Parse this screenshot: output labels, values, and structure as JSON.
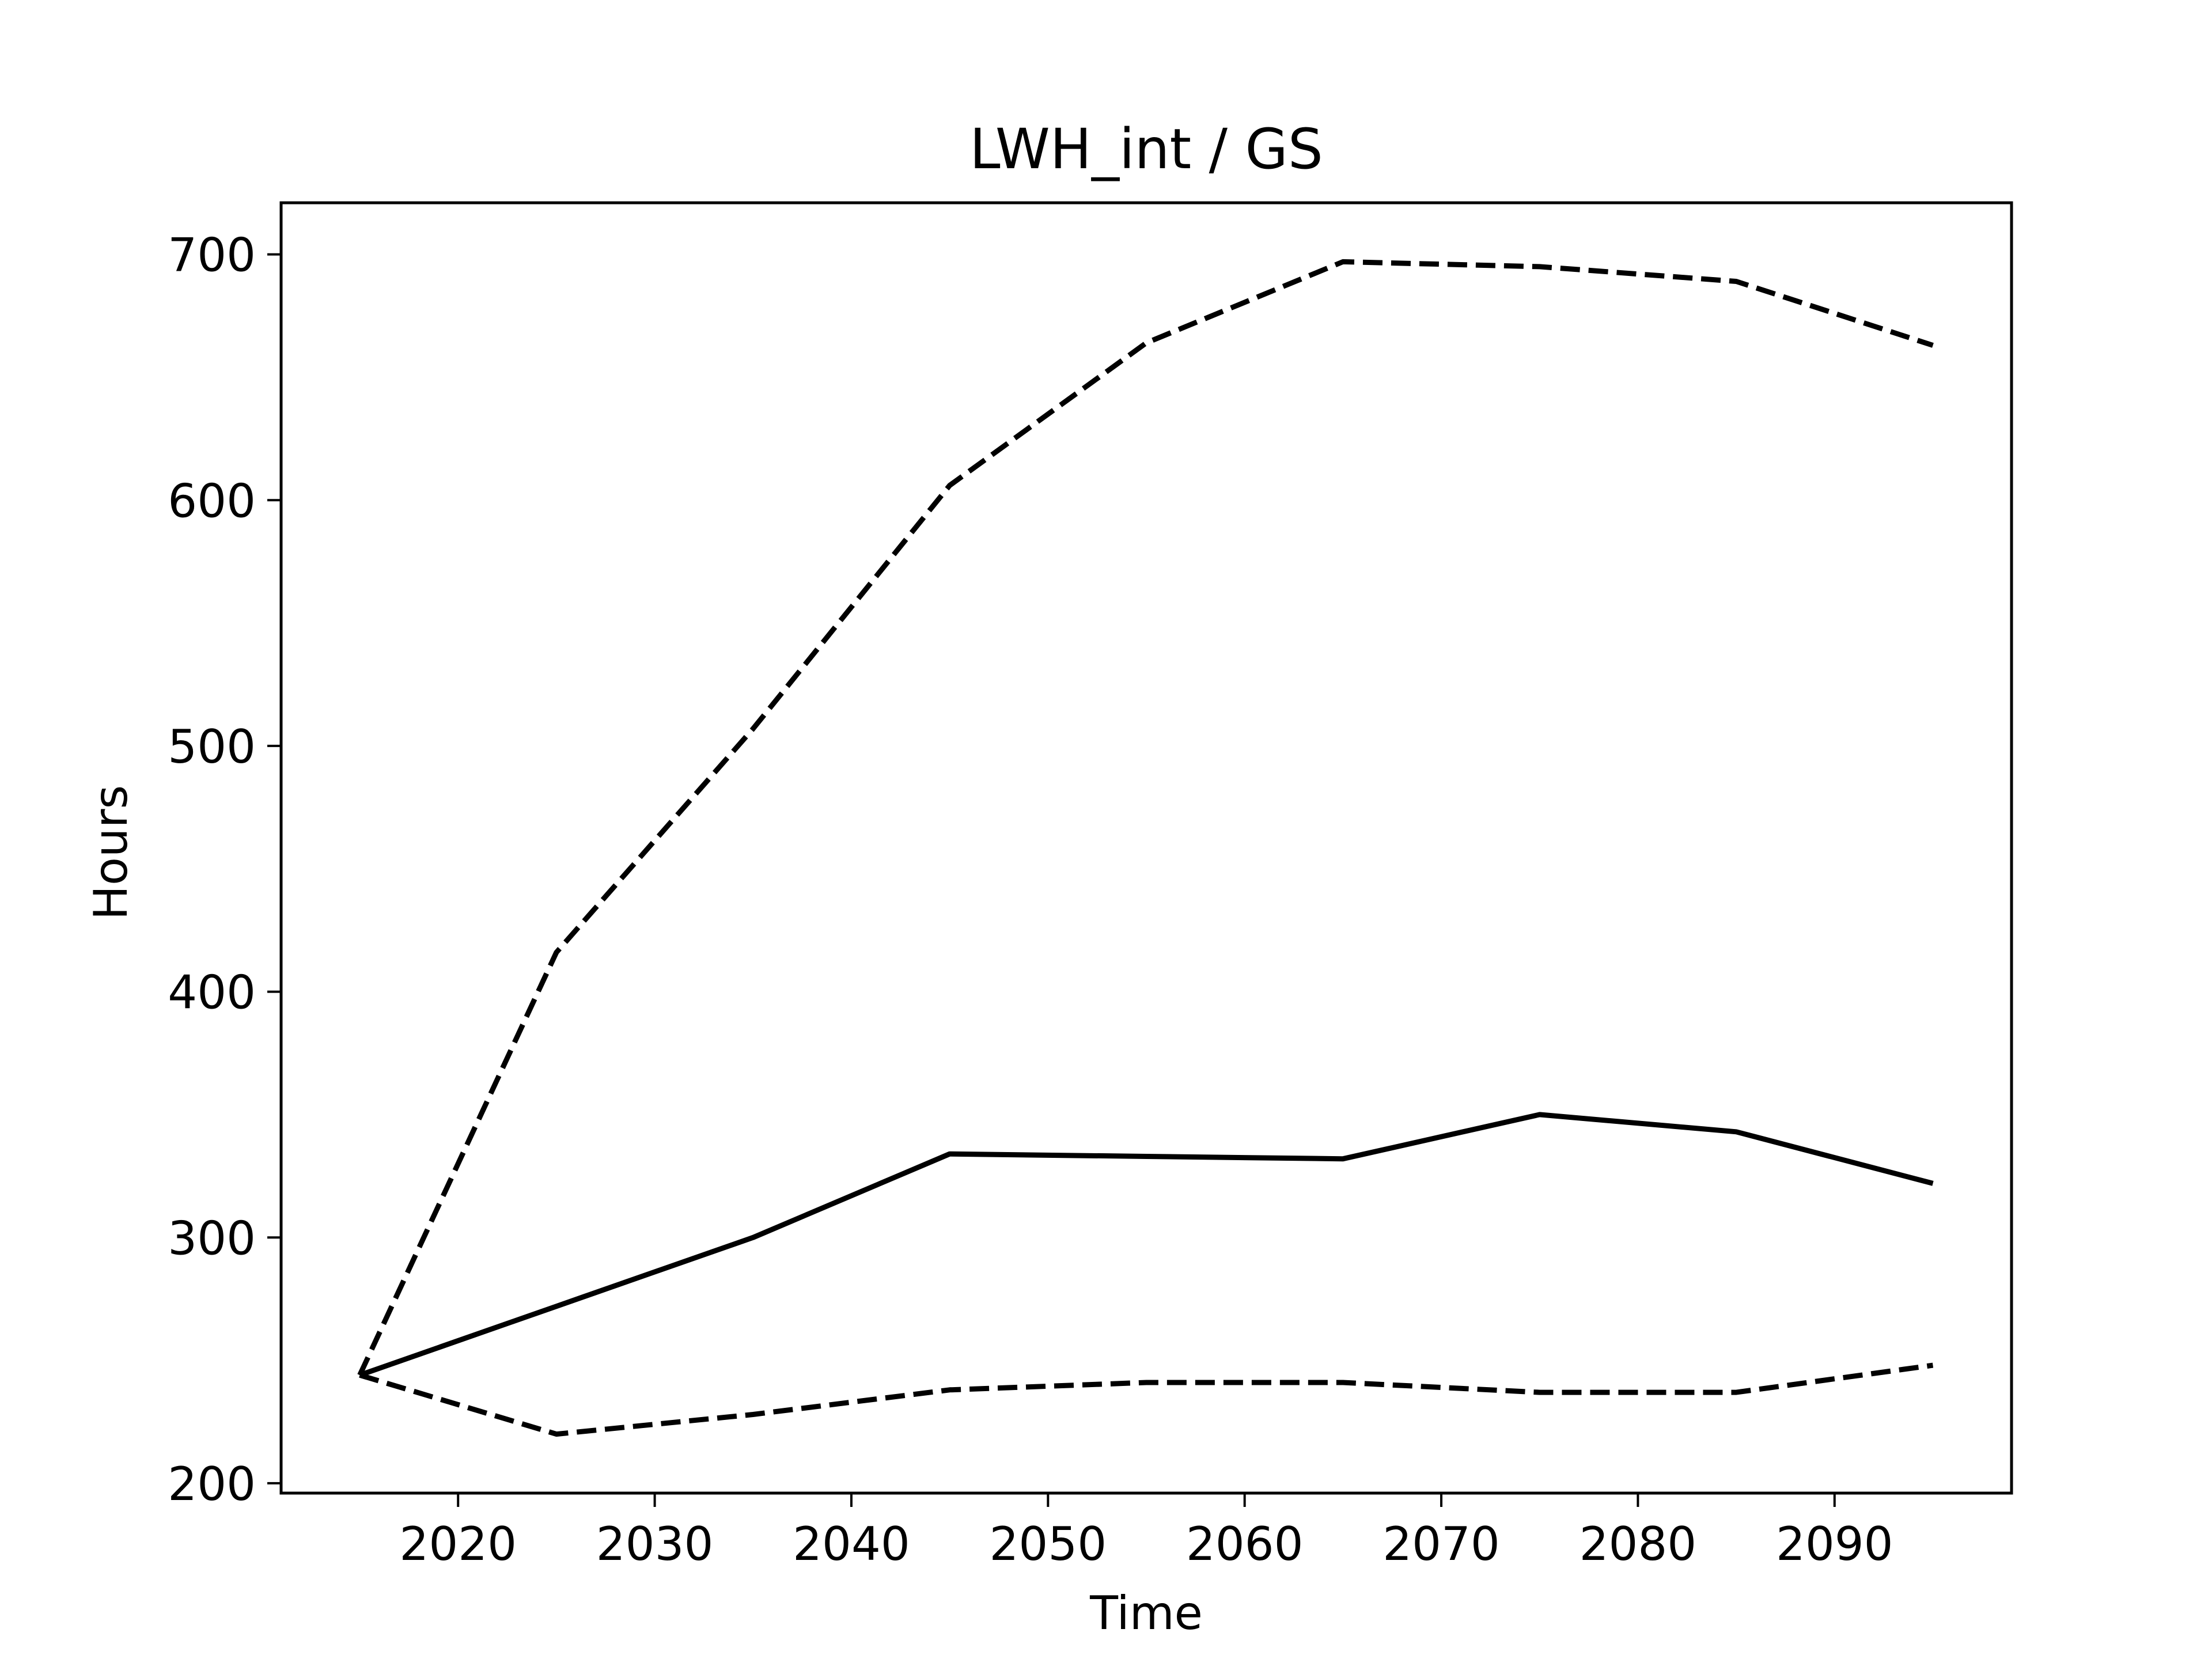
{
  "chart_data": {
    "type": "line",
    "title": "LWH_int / GS",
    "xlabel": "Time",
    "ylabel": "Hours",
    "xlim": [
      2011,
      2099
    ],
    "ylim": [
      196,
      721
    ],
    "xticks": [
      2020,
      2030,
      2040,
      2050,
      2060,
      2070,
      2080,
      2090
    ],
    "yticks": [
      200,
      300,
      400,
      500,
      600,
      700
    ],
    "grid": false,
    "legend": "none",
    "line_color": "#000000",
    "series": [
      {
        "style": "solid",
        "x": [
          2015,
          2025,
          2035,
          2045,
          2055,
          2065,
          2075,
          2085,
          2095
        ],
        "y": [
          244,
          272,
          300,
          334,
          333,
          332,
          350,
          343,
          322
        ]
      },
      {
        "style": "dashed",
        "x": [
          2015,
          2025,
          2035,
          2045,
          2055,
          2065,
          2075,
          2085,
          2095
        ],
        "y": [
          244,
          416,
          507,
          606,
          664,
          697,
          695,
          689,
          663
        ]
      },
      {
        "style": "dashed",
        "x": [
          2015,
          2025,
          2035,
          2045,
          2055,
          2065,
          2075,
          2085,
          2095
        ],
        "y": [
          244,
          220,
          228,
          238,
          241,
          241,
          237,
          237,
          248
        ]
      }
    ]
  }
}
